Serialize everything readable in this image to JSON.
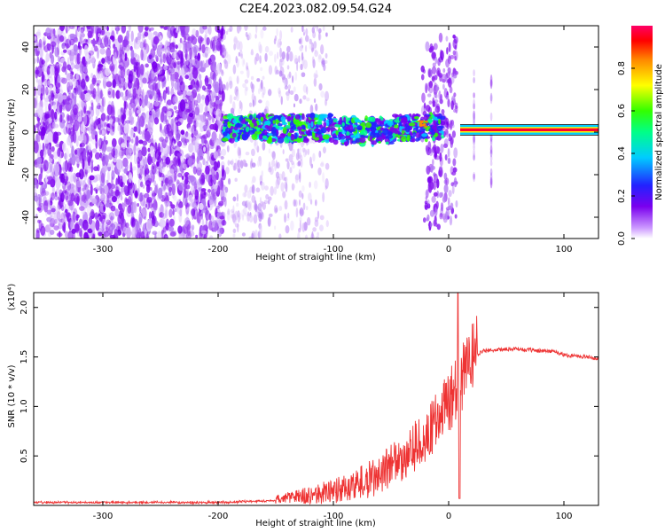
{
  "title": "C2E4.2023.082.09.54.G24",
  "colors": {
    "snr_line": "#ee3333",
    "background": "#ffffff",
    "axis": "#000000"
  },
  "chart_data": [
    {
      "type": "heatmap",
      "title": "C2E4.2023.082.09.54.G24",
      "xlabel": "Height of straight line (km)",
      "ylabel": "Frequency (Hz)",
      "xlim": [
        -360,
        130
      ],
      "ylim": [
        -50,
        50
      ],
      "x_ticks": [
        -300,
        -200,
        -100,
        0,
        100
      ],
      "x_tick_labels": [
        "-300",
        "-200",
        "-100",
        "0",
        "100"
      ],
      "y_ticks": [
        -40,
        -20,
        0,
        20,
        40
      ],
      "y_tick_labels": [
        "-40",
        "-20",
        "0",
        "20",
        "40"
      ],
      "colorbar": {
        "label": "Normalized spectral amplitude",
        "range": [
          0,
          1
        ],
        "ticks": [
          0.0,
          0.2,
          0.4,
          0.6,
          0.8
        ],
        "tick_labels": [
          "0.0",
          "0.2",
          "0.4",
          "0.6",
          "0.8"
        ],
        "colormap": "rainbow (violet to red)"
      },
      "grid": false
    },
    {
      "type": "line",
      "xlabel": "Height of straight line (km)",
      "ylabel": "SNR (10 * v/v)",
      "ylabel_multiplier": "(x10⁴)",
      "xlim": [
        -360,
        130
      ],
      "ylim": [
        0,
        2.15
      ],
      "x_ticks": [
        -300,
        -200,
        -100,
        0,
        100
      ],
      "x_tick_labels": [
        "-300",
        "-200",
        "-100",
        "0",
        "100"
      ],
      "y_ticks": [
        0.5,
        1.0,
        1.5,
        2.0
      ],
      "y_tick_labels": [
        "0.5",
        "1.0",
        "1.5",
        "2.0"
      ],
      "grid": false,
      "series": [
        {
          "x": [
            -360,
            -300,
            -250,
            -200,
            -175,
            -150,
            -125,
            -100,
            -80,
            -60,
            -40,
            -30,
            -20,
            -15,
            -10,
            -5,
            0,
            5,
            8,
            10,
            12,
            15,
            20,
            25,
            30,
            40,
            50,
            60,
            70,
            80,
            90,
            100,
            110,
            120,
            130
          ],
          "values": [
            0.03,
            0.03,
            0.03,
            0.03,
            0.04,
            0.05,
            0.07,
            0.1,
            0.16,
            0.25,
            0.4,
            0.5,
            0.6,
            0.68,
            0.78,
            0.88,
            0.95,
            1.05,
            1.12,
            1.05,
            1.2,
            1.3,
            1.42,
            1.52,
            1.56,
            1.57,
            1.58,
            1.58,
            1.57,
            1.56,
            1.56,
            1.52,
            1.51,
            1.5,
            1.48
          ]
        }
      ]
    }
  ]
}
